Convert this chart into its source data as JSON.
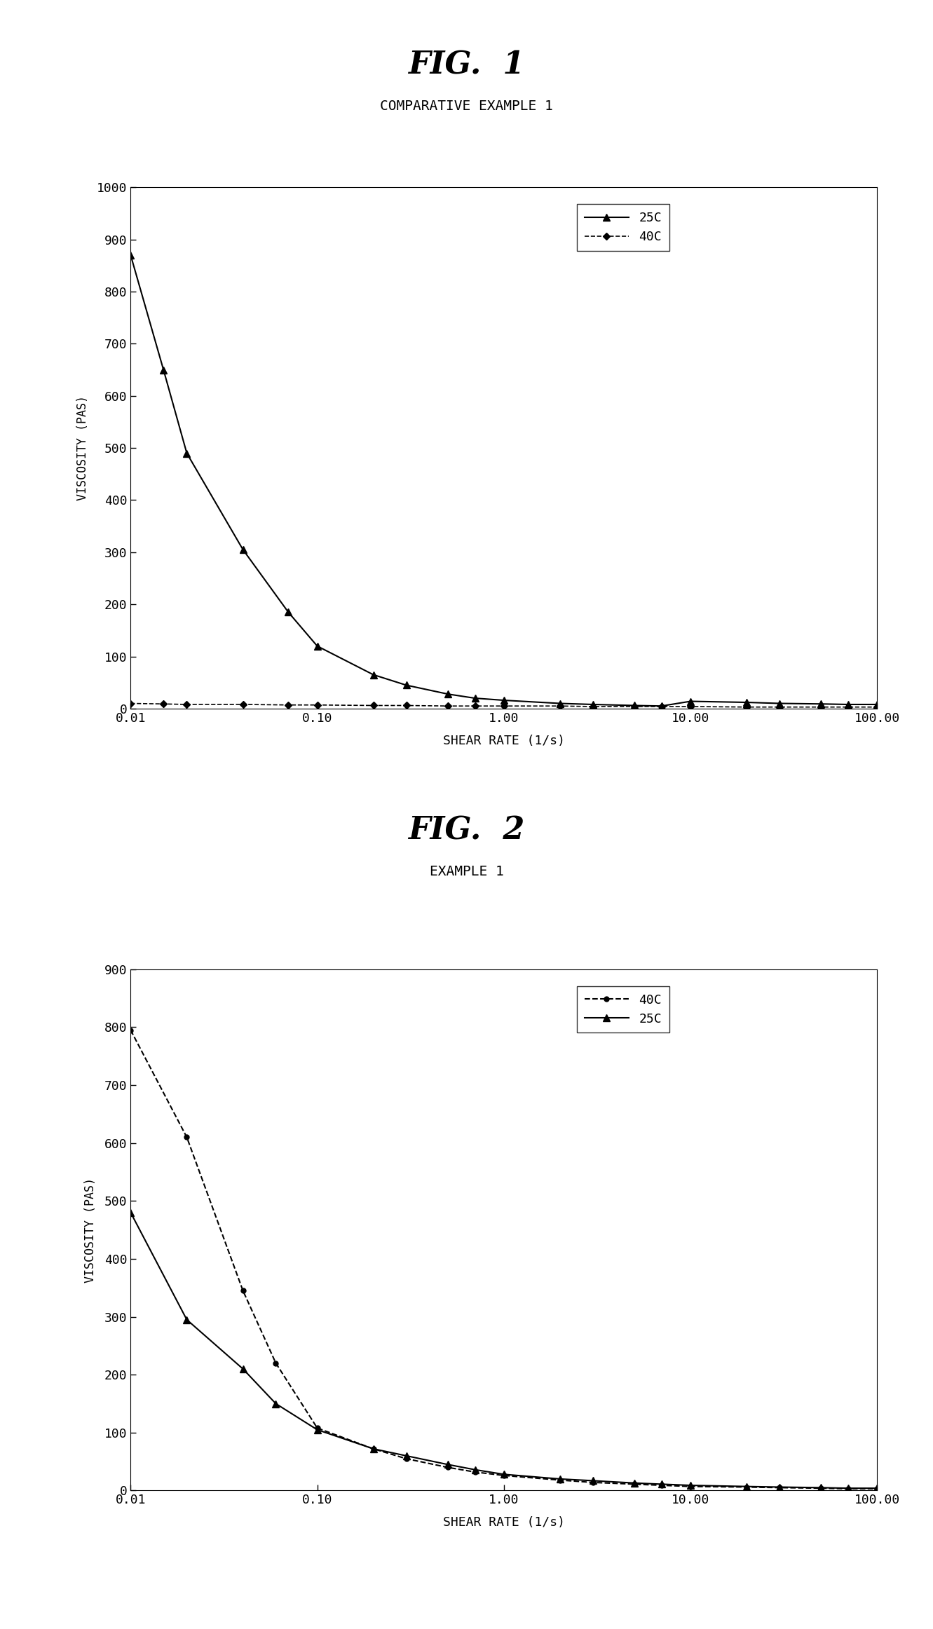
{
  "fig1_title": "FIG.  1",
  "fig1_subtitle": "COMPARATIVE EXAMPLE 1",
  "fig2_title": "FIG.  2",
  "fig2_subtitle": "EXAMPLE 1",
  "xlabel": "SHEAR RATE (1/s)",
  "ylabel": "VISCOSITY (PAS)",
  "fig1_25C_x": [
    0.01,
    0.015,
    0.02,
    0.04,
    0.07,
    0.1,
    0.2,
    0.3,
    0.5,
    0.7,
    1.0,
    2.0,
    3.0,
    5.0,
    7.0,
    10.0,
    20.0,
    30.0,
    50.0,
    70.0,
    100.0
  ],
  "fig1_25C_y": [
    870,
    650,
    490,
    305,
    185,
    120,
    65,
    45,
    28,
    20,
    16,
    10,
    8,
    6,
    5,
    14,
    12,
    10,
    9,
    8,
    8
  ],
  "fig1_40C_x": [
    0.01,
    0.015,
    0.02,
    0.04,
    0.07,
    0.1,
    0.2,
    0.3,
    0.5,
    0.7,
    1.0,
    2.0,
    3.0,
    5.0,
    7.0,
    10.0,
    20.0,
    30.0,
    50.0,
    70.0,
    100.0
  ],
  "fig1_40C_y": [
    10,
    9,
    8,
    8,
    7,
    7,
    6,
    6,
    5,
    5,
    5,
    5,
    4,
    4,
    4,
    4,
    3,
    3,
    3,
    3,
    3
  ],
  "fig2_25C_x": [
    0.01,
    0.02,
    0.04,
    0.06,
    0.1,
    0.2,
    0.3,
    0.5,
    0.7,
    1.0,
    2.0,
    3.0,
    5.0,
    7.0,
    10.0,
    20.0,
    30.0,
    50.0,
    70.0,
    100.0
  ],
  "fig2_25C_y": [
    480,
    295,
    210,
    150,
    105,
    72,
    60,
    45,
    36,
    28,
    20,
    17,
    13,
    11,
    9,
    7,
    6,
    5,
    4,
    4
  ],
  "fig2_40C_x": [
    0.01,
    0.02,
    0.04,
    0.06,
    0.1,
    0.2,
    0.3,
    0.5,
    0.7,
    1.0,
    2.0,
    3.0,
    5.0,
    7.0,
    10.0,
    20.0,
    30.0,
    50.0,
    70.0,
    100.0
  ],
  "fig2_40C_y": [
    795,
    610,
    345,
    220,
    108,
    72,
    55,
    40,
    32,
    26,
    18,
    14,
    11,
    9,
    7,
    6,
    5,
    4,
    3,
    3
  ],
  "fig1_ylim": [
    0,
    1000
  ],
  "fig1_yticks": [
    0,
    100,
    200,
    300,
    400,
    500,
    600,
    700,
    800,
    900,
    1000
  ],
  "fig2_ylim": [
    0,
    900
  ],
  "fig2_yticks": [
    0,
    100,
    200,
    300,
    400,
    500,
    600,
    700,
    800,
    900
  ],
  "xlim": [
    0.01,
    100.0
  ],
  "xticks": [
    0.01,
    0.1,
    1.0,
    10.0,
    100.0
  ],
  "xticklabels": [
    "0.01",
    "0.10",
    "1.00",
    "10.00",
    "100.00"
  ],
  "color_line": "#000000",
  "bg_color": "#ffffff"
}
